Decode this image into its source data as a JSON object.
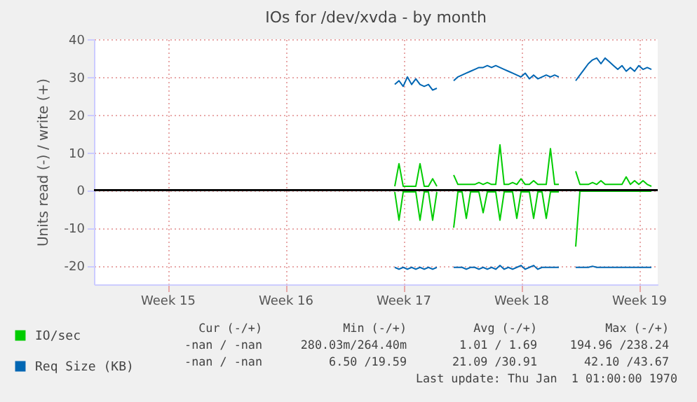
{
  "chart_data": {
    "type": "line",
    "title": "IOs for /dev/xvda - by month",
    "ylabel": "Units read (-) / write (+)",
    "categories": [
      null,
      null,
      null,
      null,
      null,
      null,
      null,
      null,
      null,
      null,
      null,
      null,
      null,
      null,
      null,
      null,
      null,
      "Week 15",
      null,
      null,
      null,
      null,
      null,
      null,
      null,
      null,
      null,
      null,
      null,
      null,
      null,
      null,
      null,
      null,
      null,
      null,
      null,
      null,
      null,
      null,
      null,
      null,
      null,
      null,
      null,
      "Week 16",
      null,
      null,
      null,
      null,
      null,
      null,
      null,
      null,
      null,
      null,
      null,
      null,
      null,
      null,
      null,
      null,
      null,
      null,
      null,
      null,
      null,
      null,
      null,
      null,
      null,
      null,
      null,
      "Week 17",
      null,
      null,
      null,
      null,
      null,
      null,
      null,
      null,
      null,
      null,
      null,
      null,
      null,
      null,
      null,
      null,
      null,
      null,
      null,
      null,
      null,
      null,
      null,
      null,
      null,
      null,
      null,
      "Week 18",
      null,
      null,
      null,
      null,
      null,
      null,
      null,
      null,
      null,
      null,
      null,
      null,
      null,
      null,
      null,
      null,
      null,
      null,
      null,
      null,
      null,
      null,
      null,
      null,
      null,
      null,
      null,
      "Week 19",
      null,
      null,
      null,
      null
    ],
    "ylim": [
      -25,
      40
    ],
    "yticks": [
      -20,
      -10,
      0,
      10,
      20,
      30,
      40
    ],
    "grid": true,
    "legend": "bottom left",
    "line_style": "solid",
    "ref_lines": [
      {
        "axis": "y",
        "value": 0,
        "color": "#000000"
      }
    ],
    "annotations": [
      "Cur (-/+)",
      "Min (-/+)",
      "Avg (-/+)",
      "Max (-/+)",
      "-nan / -nan",
      "280.03m/264.40m",
      "1.01 / 1.69",
      "194.96 /238.24",
      "-nan / -nan",
      "6.50 /19.59",
      "21.09 /30.91",
      "42.10 /43.67",
      "Last update: Thu Jan  1 01:00:00 1970"
    ],
    "series": [
      {
        "name": "IO/sec",
        "color": "#00cc00",
        "values": [
          null,
          null,
          null,
          null,
          null,
          null,
          null,
          null,
          null,
          null,
          null,
          null,
          null,
          null,
          null,
          null,
          null,
          null,
          null,
          null,
          null,
          null,
          null,
          null,
          null,
          null,
          null,
          null,
          null,
          null,
          null,
          null,
          null,
          null,
          null,
          null,
          null,
          null,
          null,
          null,
          null,
          null,
          null,
          null,
          null,
          null,
          null,
          null,
          null,
          null,
          null,
          null,
          null,
          null,
          null,
          null,
          null,
          null,
          null,
          null,
          null,
          null,
          null,
          null,
          null,
          null,
          null,
          null,
          null,
          null,
          null,
          1,
          7,
          1,
          1,
          1,
          1,
          7,
          1,
          1,
          3,
          1,
          null,
          null,
          null,
          4,
          1.5,
          1.5,
          1.5,
          1.5,
          1.5,
          2,
          1.5,
          2,
          1.5,
          1.5,
          12,
          1.5,
          1.5,
          2,
          1.5,
          3,
          1.5,
          1.5,
          2.5,
          1.5,
          1.5,
          1.5,
          11,
          1.5,
          1.5,
          null,
          null,
          null,
          5,
          1.5,
          1.5,
          1.5,
          2,
          1.5,
          2.5,
          1.5,
          1.5,
          1.5,
          1.5,
          1.5,
          3.5,
          1.5,
          2.5,
          1.5,
          2.5,
          1.5,
          1,
          null
        ]
      },
      {
        "color": "#00cc00",
        "values": [
          null,
          null,
          null,
          null,
          null,
          null,
          null,
          null,
          null,
          null,
          null,
          null,
          null,
          null,
          null,
          null,
          null,
          null,
          null,
          null,
          null,
          null,
          null,
          null,
          null,
          null,
          null,
          null,
          null,
          null,
          null,
          null,
          null,
          null,
          null,
          null,
          null,
          null,
          null,
          null,
          null,
          null,
          null,
          null,
          null,
          null,
          null,
          null,
          null,
          null,
          null,
          null,
          null,
          null,
          null,
          null,
          null,
          null,
          null,
          null,
          null,
          null,
          null,
          null,
          null,
          null,
          null,
          null,
          null,
          null,
          null,
          -0.5,
          -8,
          -0.5,
          -0.5,
          -0.5,
          -0.5,
          -8,
          -0.5,
          -0.5,
          -8,
          -0.5,
          null,
          null,
          null,
          -10,
          -0.5,
          -0.5,
          -7.5,
          -0.5,
          -0.5,
          -0.5,
          -6,
          -0.5,
          -0.5,
          -0.5,
          -8,
          -0.5,
          -0.5,
          -0.5,
          -7.5,
          -0.5,
          -0.5,
          -0.5,
          -7.5,
          -0.5,
          -0.5,
          -7.5,
          -0.5,
          -0.5,
          -0.5,
          null,
          null,
          null,
          -15,
          -0.3,
          -0.3,
          -0.3,
          -0.3,
          -0.3,
          -0.3,
          -0.3,
          -0.3,
          -0.3,
          -0.3,
          -0.3,
          -0.3,
          -0.3,
          -0.3,
          -0.3,
          -0.3,
          -0.3,
          -0.3,
          null
        ]
      },
      {
        "name": "Req Size (KB)",
        "color": "#0066b3",
        "values": [
          null,
          null,
          null,
          null,
          null,
          null,
          null,
          null,
          null,
          null,
          null,
          null,
          null,
          null,
          null,
          null,
          null,
          null,
          null,
          null,
          null,
          null,
          null,
          null,
          null,
          null,
          null,
          null,
          null,
          null,
          null,
          null,
          null,
          null,
          null,
          null,
          null,
          null,
          null,
          null,
          null,
          null,
          null,
          null,
          null,
          null,
          null,
          null,
          null,
          null,
          null,
          null,
          null,
          null,
          null,
          null,
          null,
          null,
          null,
          null,
          null,
          null,
          null,
          null,
          null,
          null,
          null,
          null,
          null,
          null,
          null,
          28,
          29,
          27.5,
          30,
          28,
          29.5,
          28,
          27.5,
          28,
          26.5,
          27,
          null,
          null,
          null,
          29,
          30,
          30.5,
          31,
          31.5,
          32,
          32.5,
          32.5,
          33,
          32.5,
          33,
          32.5,
          32,
          31.5,
          31,
          30.5,
          30,
          31,
          29.5,
          30.5,
          29.5,
          30,
          30.5,
          30,
          30.5,
          30,
          null,
          null,
          null,
          29,
          30.5,
          32,
          33.5,
          34.5,
          35,
          33.5,
          35,
          34,
          33,
          32,
          33,
          31.5,
          32.5,
          31.5,
          33,
          32,
          32.5,
          32,
          null
        ]
      },
      {
        "color": "#0066b3",
        "values": [
          null,
          null,
          null,
          null,
          null,
          null,
          null,
          null,
          null,
          null,
          null,
          null,
          null,
          null,
          null,
          null,
          null,
          null,
          null,
          null,
          null,
          null,
          null,
          null,
          null,
          null,
          null,
          null,
          null,
          null,
          null,
          null,
          null,
          null,
          null,
          null,
          null,
          null,
          null,
          null,
          null,
          null,
          null,
          null,
          null,
          null,
          null,
          null,
          null,
          null,
          null,
          null,
          null,
          null,
          null,
          null,
          null,
          null,
          null,
          null,
          null,
          null,
          null,
          null,
          null,
          null,
          null,
          null,
          null,
          null,
          null,
          -20.5,
          -21,
          -20.5,
          -21,
          -20.5,
          -21,
          -20.5,
          -21,
          -20.5,
          -21,
          -20.5,
          null,
          null,
          null,
          -20.5,
          -20.5,
          -20.5,
          -21,
          -20.5,
          -20.5,
          -21,
          -20.5,
          -21,
          -20.5,
          -21,
          -20,
          -21,
          -20.5,
          -21,
          -20.5,
          -20,
          -21,
          -20.5,
          -20,
          -21,
          -20.5,
          -20.5,
          -20.5,
          -20.5,
          -20.5,
          null,
          null,
          null,
          -20.5,
          -20.5,
          -20.5,
          -20.5,
          -20.2,
          -20.5,
          -20.5,
          -20.5,
          -20.5,
          -20.5,
          -20.5,
          -20.5,
          -20.5,
          -20.5,
          -20.5,
          -20.5,
          -20.5,
          -20.5,
          -20.5,
          null
        ]
      }
    ]
  }
}
